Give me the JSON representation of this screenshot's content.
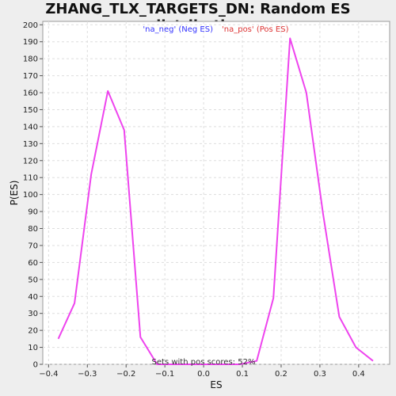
{
  "chart_data": {
    "type": "line",
    "title": "ZHANG_TLX_TARGETS_DN: Random ES distribution",
    "xlabel": "ES",
    "ylabel": "P(ES)",
    "xlim": [
      -0.415,
      0.48
    ],
    "ylim": [
      0,
      202
    ],
    "x_ticks": [
      -0.4,
      -0.3,
      -0.2,
      -0.1,
      0.0,
      0.1,
      0.2,
      0.3,
      0.4
    ],
    "x_tick_labels": [
      "−0.4",
      "−0.3",
      "−0.2",
      "−0.1",
      "0.0",
      "0.1",
      "0.2",
      "0.3",
      "0.4"
    ],
    "y_ticks": [
      0,
      10,
      20,
      30,
      40,
      50,
      60,
      70,
      80,
      90,
      100,
      110,
      120,
      130,
      140,
      150,
      160,
      170,
      180,
      190,
      200
    ],
    "grid": true,
    "legend": {
      "placement": "top-center",
      "entries": [
        {
          "label": "'na_neg' (Neg ES)",
          "color": "#3333ff"
        },
        {
          "label": "'na_pos' (Pos ES)",
          "color": "#dd3333"
        }
      ]
    },
    "annotation": "Sets with pos scores: 52%",
    "series": [
      {
        "color": "#ee44ee",
        "x": [
          -0.375,
          -0.333,
          -0.29,
          -0.247,
          -0.205,
          -0.163,
          -0.12,
          -0.078,
          -0.035,
          0.008,
          0.05,
          0.093,
          0.137,
          0.18,
          0.223,
          0.265,
          0.308,
          0.35,
          0.393,
          0.437
        ],
        "y": [
          15,
          36,
          112,
          161,
          138,
          16,
          0,
          0,
          0,
          0,
          0,
          0,
          2,
          39,
          192,
          160,
          89,
          28,
          10,
          2
        ]
      }
    ]
  }
}
